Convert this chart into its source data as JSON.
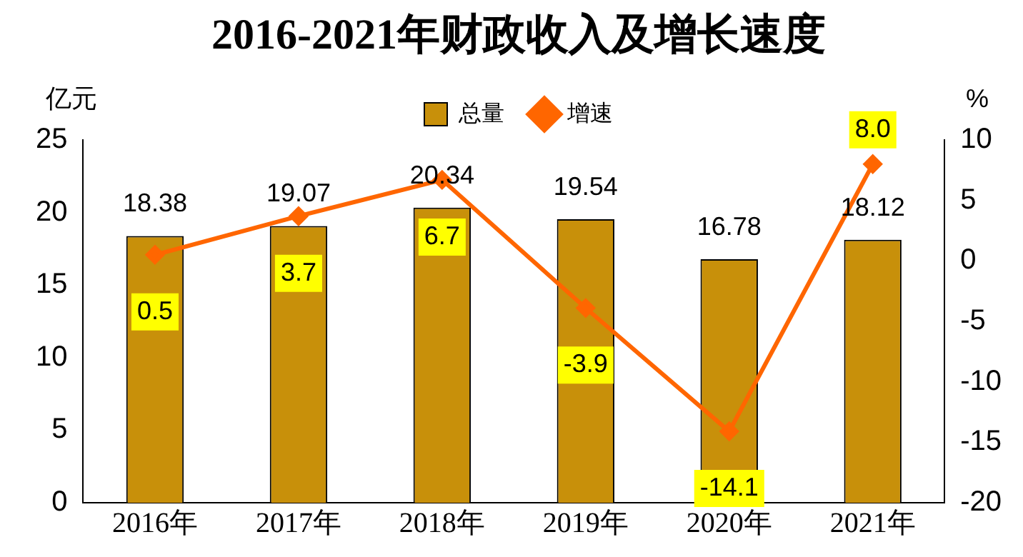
{
  "chart_data": {
    "type": "bar",
    "title": "2016-2021年财政收入及增长速度",
    "ylabel": "亿元",
    "y2label": "%",
    "categories": [
      "2016年",
      "2017年",
      "2018年",
      "2019年",
      "2020年",
      "2021年"
    ],
    "series": [
      {
        "name": "总量",
        "color": "#c8900a",
        "values": [
          18.38,
          19.07,
          20.34,
          19.54,
          16.78,
          18.12
        ]
      },
      {
        "name": "增速",
        "type": "line",
        "axis": "y2",
        "color": "#ff6600",
        "marker": "diamond",
        "values": [
          0.5,
          3.7,
          6.7,
          -3.9,
          -14.1,
          8.0
        ],
        "value_labels": [
          "0.5",
          "3.7",
          "6.7",
          "-3.9",
          "-14.1",
          "8.0"
        ]
      }
    ],
    "ylim": [
      0,
      25
    ],
    "yticks": [
      0,
      5,
      10,
      15,
      20,
      25
    ],
    "y2lim": [
      -20,
      10
    ],
    "y2ticks": [
      -20,
      -15,
      -10,
      -5,
      0,
      5,
      10
    ],
    "data_labels": true,
    "legend": "top",
    "grid": false
  }
}
